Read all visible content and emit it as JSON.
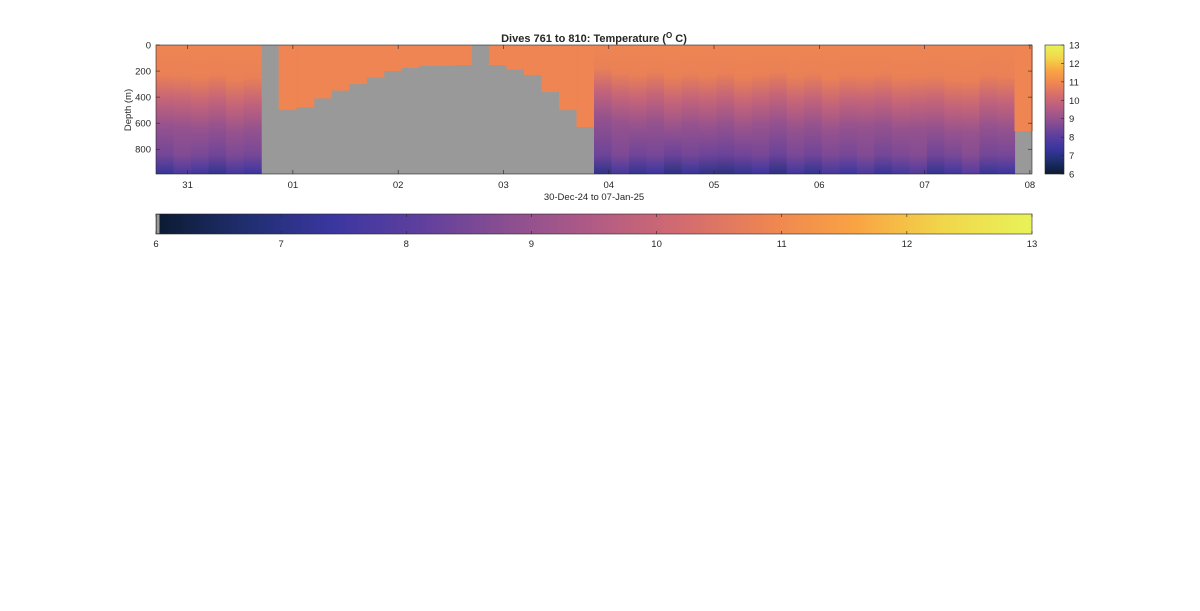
{
  "chart_data": {
    "type": "heatmap",
    "title": "Dives 761 to 810: Temperature (",
    "title_superscript": "O",
    "title_suffix": " C)",
    "xlabel": "30-Dec-24 to 07-Jan-25",
    "ylabel": "Depth (m)",
    "xlim_days": [
      30.7,
      39.02
    ],
    "ylim": [
      0,
      990
    ],
    "y_reversed": true,
    "x_ticks": [
      {
        "day": 31,
        "label": "31"
      },
      {
        "day": 32,
        "label": "01"
      },
      {
        "day": 33,
        "label": "02"
      },
      {
        "day": 34,
        "label": "03"
      },
      {
        "day": 35,
        "label": "04"
      },
      {
        "day": 36,
        "label": "05"
      },
      {
        "day": 37,
        "label": "06"
      },
      {
        "day": 38,
        "label": "07"
      },
      {
        "day": 39,
        "label": "08"
      }
    ],
    "y_ticks": [
      0,
      200,
      400,
      600,
      800
    ],
    "color_limits": [
      6,
      13
    ],
    "colorbar_ticks": [
      6,
      7,
      8,
      9,
      10,
      11,
      12,
      13
    ],
    "colormap": [
      "#0b1a30",
      "#1f2e6e",
      "#3a36a0",
      "#5e3f9e",
      "#8a4e91",
      "#b15b85",
      "#d36b70",
      "#ee8552",
      "#f9a443",
      "#f1d74a",
      "#e8f358"
    ],
    "missing_color": "#999999",
    "dives": [
      {
        "dive": 761,
        "min_temp": 7.3,
        "mixed_depth": 300
      },
      {
        "dive": 762,
        "min_temp": 7.7,
        "mixed_depth": 310
      },
      {
        "dive": 763,
        "min_temp": 7.5,
        "mixed_depth": 330
      },
      {
        "dive": 764,
        "min_temp": 7.2,
        "mixed_depth": 300
      },
      {
        "dive": 765,
        "min_temp": 7.6,
        "mixed_depth": 350
      },
      {
        "dive": 766,
        "min_temp": 7.4,
        "mixed_depth": 320
      },
      {
        "dive": 767,
        "min_temp": 0,
        "no_data_below": 0
      },
      {
        "dive": 768,
        "min_temp": 0,
        "no_data_below": 500
      },
      {
        "dive": 769,
        "min_temp": 0,
        "no_data_below": 480
      },
      {
        "dive": 770,
        "min_temp": 0,
        "no_data_below": 410
      },
      {
        "dive": 771,
        "min_temp": 0,
        "no_data_below": 350
      },
      {
        "dive": 772,
        "min_temp": 0,
        "no_data_below": 300
      },
      {
        "dive": 773,
        "min_temp": 0,
        "no_data_below": 250
      },
      {
        "dive": 774,
        "min_temp": 0,
        "no_data_below": 200
      },
      {
        "dive": 775,
        "min_temp": 0,
        "no_data_below": 175
      },
      {
        "dive": 776,
        "min_temp": 0,
        "no_data_below": 160
      },
      {
        "dive": 777,
        "min_temp": 0,
        "no_data_below": 160
      },
      {
        "dive": 778,
        "min_temp": 0,
        "no_data_below": 155
      },
      {
        "dive": 779,
        "min_temp": 0,
        "no_data_below": 0
      },
      {
        "dive": 780,
        "min_temp": 0,
        "no_data_below": 155
      },
      {
        "dive": 781,
        "min_temp": 0,
        "no_data_below": 190
      },
      {
        "dive": 782,
        "min_temp": 0,
        "no_data_below": 230
      },
      {
        "dive": 783,
        "min_temp": 0,
        "no_data_below": 360
      },
      {
        "dive": 784,
        "min_temp": 0,
        "no_data_below": 500
      },
      {
        "dive": 785,
        "min_temp": 0,
        "no_data_below": 630
      },
      {
        "dive": 786,
        "min_temp": 7.1,
        "mixed_depth": 230
      },
      {
        "dive": 787,
        "min_temp": 7.6,
        "mixed_depth": 280
      },
      {
        "dive": 788,
        "min_temp": 7.2,
        "mixed_depth": 300
      },
      {
        "dive": 789,
        "min_temp": 7.4,
        "mixed_depth": 270
      },
      {
        "dive": 790,
        "min_temp": 7.0,
        "mixed_depth": 320
      },
      {
        "dive": 791,
        "min_temp": 7.3,
        "mixed_depth": 290
      },
      {
        "dive": 792,
        "min_temp": 7.1,
        "mixed_depth": 310
      },
      {
        "dive": 793,
        "min_temp": 7.0,
        "mixed_depth": 280
      },
      {
        "dive": 794,
        "min_temp": 7.2,
        "mixed_depth": 330
      },
      {
        "dive": 795,
        "min_temp": 7.4,
        "mixed_depth": 300
      },
      {
        "dive": 796,
        "min_temp": 7.0,
        "mixed_depth": 270
      },
      {
        "dive": 797,
        "min_temp": 7.5,
        "mixed_depth": 320
      },
      {
        "dive": 798,
        "min_temp": 7.2,
        "mixed_depth": 290
      },
      {
        "dive": 799,
        "min_temp": 7.6,
        "mixed_depth": 340
      },
      {
        "dive": 800,
        "min_temp": 7.4,
        "mixed_depth": 300
      },
      {
        "dive": 801,
        "min_temp": 7.7,
        "mixed_depth": 310
      },
      {
        "dive": 802,
        "min_temp": 7.3,
        "mixed_depth": 290
      },
      {
        "dive": 803,
        "min_temp": 7.6,
        "mixed_depth": 330
      },
      {
        "dive": 804,
        "min_temp": 7.8,
        "mixed_depth": 320
      },
      {
        "dive": 805,
        "min_temp": 7.2,
        "mixed_depth": 310
      },
      {
        "dive": 806,
        "min_temp": 7.5,
        "mixed_depth": 350
      },
      {
        "dive": 807,
        "min_temp": 7.9,
        "mixed_depth": 360
      },
      {
        "dive": 808,
        "min_temp": 7.3,
        "mixed_depth": 300
      },
      {
        "dive": 809,
        "min_temp": 7.4,
        "mixed_depth": 320
      },
      {
        "dive": 810,
        "min_temp": 0,
        "no_data_below": 660
      }
    ]
  }
}
